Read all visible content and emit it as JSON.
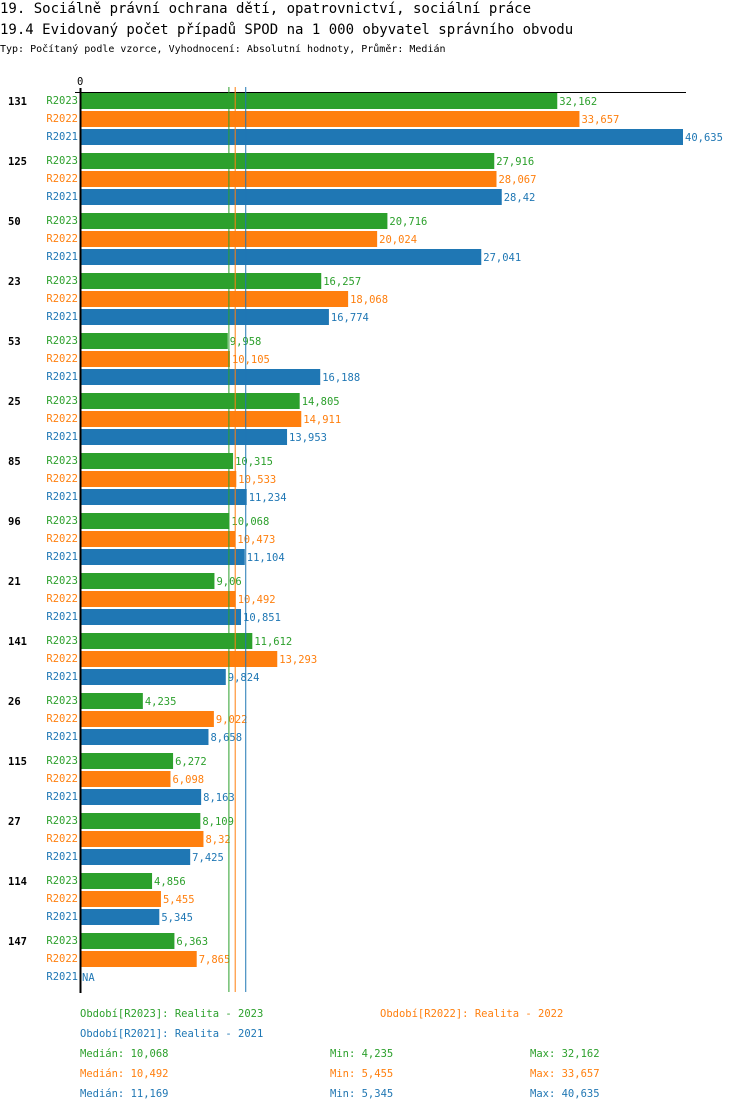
{
  "header": {
    "title": "19. Sociálně právní ochrana dětí, opatrovnictví, sociální práce",
    "subtitle": "19.4 Evidovaný počet případů SPOD na 1 000 obyvatel správního obvodu",
    "type_line": "Typ: Počítaný podle vzorce, Vyhodnocení: Absolutní hodnoty, Průměr: Medián"
  },
  "chart_data": {
    "type": "bar",
    "orientation": "horizontal",
    "x_tick_labels": [
      "0"
    ],
    "xlim": [
      0,
      40.635
    ],
    "categories": [
      "131",
      "125",
      "50",
      "23",
      "53",
      "25",
      "85",
      "96",
      "21",
      "141",
      "26",
      "115",
      "27",
      "114",
      "147"
    ],
    "series": [
      {
        "name": "R2023",
        "color": "#2ca02c",
        "values": [
          32.162,
          27.916,
          20.716,
          16.257,
          9.958,
          14.805,
          10.315,
          10.068,
          9.06,
          11.612,
          4.235,
          6.272,
          8.109,
          4.856,
          6.363
        ],
        "labels": [
          "32,162",
          "27,916",
          "20,716",
          "16,257",
          "9,958",
          "14,805",
          "10,315",
          "10,068",
          "9,06",
          "11,612",
          "4,235",
          "6,272",
          "8,109",
          "4,856",
          "6,363"
        ]
      },
      {
        "name": "R2022",
        "color": "#ff7f0e",
        "values": [
          33.657,
          28.067,
          20.024,
          18.068,
          10.105,
          14.911,
          10.533,
          10.473,
          10.492,
          13.293,
          9.022,
          6.098,
          8.32,
          5.455,
          7.865
        ],
        "labels": [
          "33,657",
          "28,067",
          "20,024",
          "18,068",
          "10,105",
          "14,911",
          "10,533",
          "10,473",
          "10,492",
          "13,293",
          "9,022",
          "6,098",
          "8,32",
          "5,455",
          "7,865"
        ]
      },
      {
        "name": "R2021",
        "color": "#1f77b4",
        "values": [
          40.635,
          28.42,
          27.041,
          16.774,
          16.188,
          13.953,
          11.234,
          11.104,
          10.851,
          9.824,
          8.658,
          8.163,
          7.425,
          5.345,
          null
        ],
        "labels": [
          "40,635",
          "28,42",
          "27,041",
          "16,774",
          "16,188",
          "13,953",
          "11,234",
          "11,104",
          "10,851",
          "9,824",
          "8,658",
          "8,163",
          "7,425",
          "5,345",
          "NA"
        ]
      }
    ],
    "median_lines": [
      {
        "series": "R2023",
        "value": 10.068
      },
      {
        "series": "R2022",
        "value": 10.492
      },
      {
        "series": "R2021",
        "value": 11.169
      }
    ]
  },
  "legend": {
    "periods": [
      {
        "text": "Období[R2023]: Realita - 2023",
        "color": "#2ca02c"
      },
      {
        "text": "Období[R2022]: Realita - 2022",
        "color": "#ff7f0e"
      },
      {
        "text": "Období[R2021]: Realita - 2021",
        "color": "#1f77b4"
      }
    ],
    "stats": [
      {
        "median": "Medián: 10,068",
        "min": "Min: 4,235",
        "max": "Max: 32,162",
        "color": "#2ca02c"
      },
      {
        "median": "Medián: 10,492",
        "min": "Min: 5,455",
        "max": "Max: 33,657",
        "color": "#ff7f0e"
      },
      {
        "median": "Medián: 11,169",
        "min": "Min: 5,345",
        "max": "Max: 40,635",
        "color": "#1f77b4"
      }
    ]
  }
}
